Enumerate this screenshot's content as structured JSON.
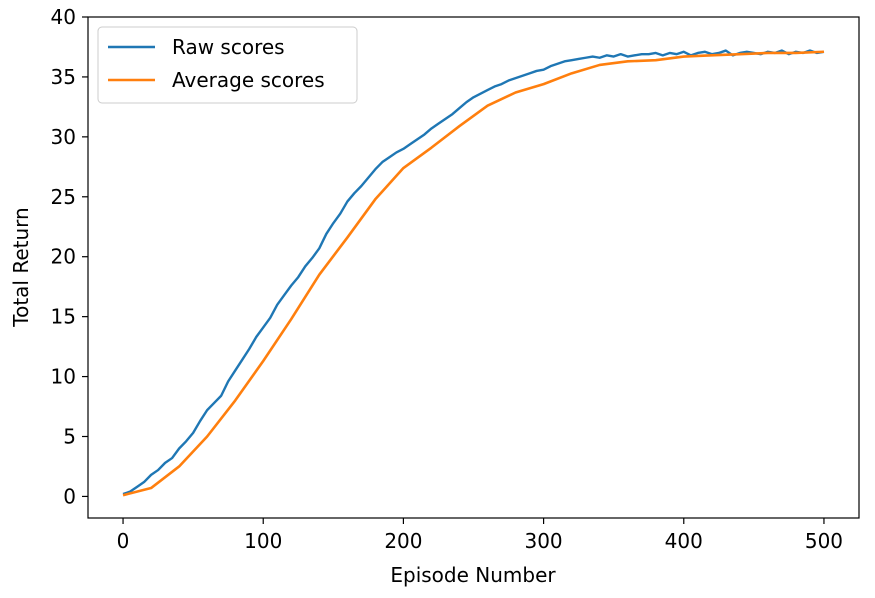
{
  "chart_data": {
    "type": "line",
    "title": "",
    "xlabel": "Episode Number",
    "ylabel": "Total Return",
    "xlim": [
      -25,
      525
    ],
    "ylim": [
      -1.8,
      40
    ],
    "xticks": [
      0,
      100,
      200,
      300,
      400,
      500
    ],
    "yticks": [
      0,
      5,
      10,
      15,
      20,
      25,
      30,
      35,
      40
    ],
    "grid": false,
    "legend_position": "upper-left",
    "series": [
      {
        "name": "Raw scores",
        "color": "#1f77b4",
        "x": [
          0,
          5,
          10,
          15,
          20,
          25,
          30,
          35,
          40,
          45,
          50,
          55,
          60,
          65,
          70,
          75,
          80,
          85,
          90,
          95,
          100,
          105,
          110,
          115,
          120,
          125,
          130,
          135,
          140,
          145,
          150,
          155,
          160,
          165,
          170,
          175,
          180,
          185,
          190,
          195,
          200,
          205,
          210,
          215,
          220,
          225,
          230,
          235,
          240,
          245,
          250,
          255,
          260,
          265,
          270,
          275,
          280,
          285,
          290,
          295,
          300,
          305,
          310,
          315,
          320,
          325,
          330,
          335,
          340,
          345,
          350,
          355,
          360,
          365,
          370,
          375,
          380,
          385,
          390,
          395,
          400,
          405,
          410,
          415,
          420,
          425,
          430,
          435,
          440,
          445,
          450,
          455,
          460,
          465,
          470,
          475,
          480,
          485,
          490,
          495,
          500
        ],
        "values": [
          0.2,
          0.4,
          0.8,
          1.2,
          1.8,
          2.2,
          2.8,
          3.2,
          4.0,
          4.6,
          5.3,
          6.3,
          7.2,
          7.8,
          8.4,
          9.6,
          10.5,
          11.4,
          12.3,
          13.3,
          14.1,
          14.9,
          16.0,
          16.8,
          17.6,
          18.3,
          19.2,
          19.9,
          20.7,
          21.9,
          22.8,
          23.6,
          24.6,
          25.3,
          25.9,
          26.6,
          27.3,
          27.9,
          28.3,
          28.7,
          29.0,
          29.4,
          29.8,
          30.2,
          30.7,
          31.1,
          31.5,
          31.9,
          32.4,
          32.9,
          33.3,
          33.6,
          33.9,
          34.2,
          34.4,
          34.7,
          34.9,
          35.1,
          35.3,
          35.5,
          35.6,
          35.9,
          36.1,
          36.3,
          36.4,
          36.5,
          36.6,
          36.7,
          36.6,
          36.8,
          36.7,
          36.9,
          36.7,
          36.8,
          36.9,
          36.9,
          37.0,
          36.8,
          37.0,
          36.9,
          37.1,
          36.8,
          37.0,
          37.1,
          36.9,
          37.0,
          37.2,
          36.8,
          37.0,
          37.1,
          37.0,
          36.9,
          37.1,
          37.0,
          37.2,
          36.9,
          37.1,
          37.0,
          37.2,
          37.0,
          37.1
        ]
      },
      {
        "name": "Average scores",
        "color": "#ff7f0e",
        "x": [
          0,
          20,
          40,
          60,
          80,
          100,
          120,
          140,
          160,
          180,
          200,
          220,
          240,
          260,
          280,
          300,
          320,
          340,
          360,
          380,
          400,
          420,
          440,
          460,
          480,
          500
        ],
        "values": [
          0.1,
          0.7,
          2.5,
          5.0,
          8.0,
          11.3,
          14.8,
          18.5,
          21.6,
          24.8,
          27.4,
          29.1,
          30.9,
          32.6,
          33.7,
          34.4,
          35.3,
          36.0,
          36.3,
          36.4,
          36.7,
          36.8,
          36.9,
          37.0,
          37.0,
          37.1
        ]
      }
    ]
  }
}
